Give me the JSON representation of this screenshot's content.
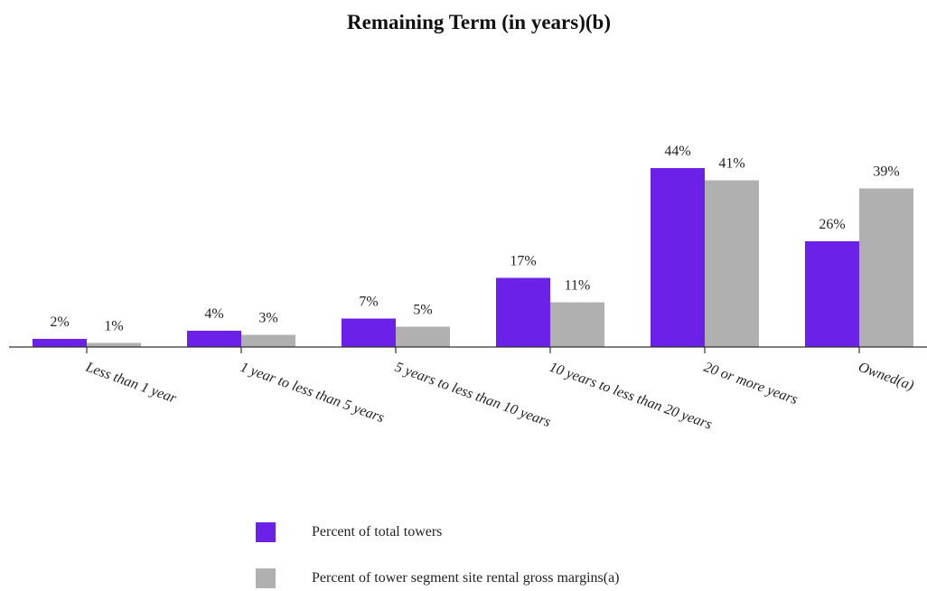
{
  "chart_data": {
    "type": "bar",
    "title": "Remaining Term (in years)(b)",
    "categories": [
      "Less than 1 year",
      "1 year to less than 5 years",
      "5 years to less than 10 years",
      "10 years to less than 20 years",
      "20 or more years",
      "Owned(a)"
    ],
    "series": [
      {
        "name": "Percent of total towers",
        "values": [
          2,
          4,
          7,
          17,
          44,
          26
        ],
        "labels": [
          "2%",
          "4%",
          "7%",
          "17%",
          "44%",
          "26%"
        ],
        "color": "#6b21e8"
      },
      {
        "name": "Percent of tower segment site rental gross margins(a)",
        "values": [
          1,
          3,
          5,
          11,
          41,
          39
        ],
        "labels": [
          "1%",
          "3%",
          "5%",
          "11%",
          "41%",
          "39%"
        ],
        "color": "#b0b0b0"
      }
    ],
    "ylim": [
      0,
      50
    ],
    "grid": false,
    "legend_position": "bottom-left"
  }
}
